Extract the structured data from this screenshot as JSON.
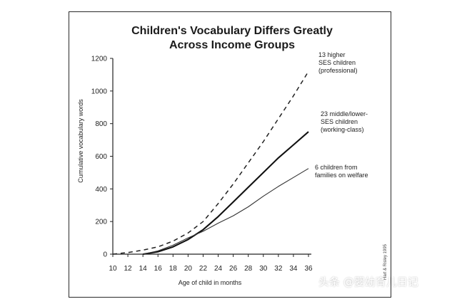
{
  "chart_data": {
    "type": "line",
    "title_lines": [
      "Children's Vocabulary Differs Greatly",
      "Across Income Groups"
    ],
    "xlabel": "Age of child in months",
    "ylabel": "Cumulative vocabulary words",
    "x_ticks": [
      10,
      12,
      14,
      16,
      18,
      20,
      22,
      24,
      26,
      28,
      30,
      32,
      34,
      36
    ],
    "y_ticks": [
      0,
      200,
      400,
      600,
      800,
      1000,
      1200
    ],
    "xlim": [
      10,
      36
    ],
    "ylim": [
      0,
      1200
    ],
    "grid": false,
    "series": [
      {
        "name": "13 higher SES children (professional)",
        "label_lines": [
          "13 higher",
          "SES children",
          "(professional)"
        ],
        "style": "dashed",
        "x": [
          10,
          12,
          14,
          16,
          18,
          20,
          22,
          24,
          26,
          28,
          30,
          32,
          34,
          36
        ],
        "y": [
          0,
          10,
          25,
          45,
          80,
          130,
          200,
          310,
          430,
          560,
          690,
          830,
          970,
          1120
        ]
      },
      {
        "name": "23 middle/lower-SES children (working-class)",
        "label_lines": [
          "23 middle/lower-",
          "SES children",
          "(working-class)"
        ],
        "style": "solid-thick",
        "x": [
          14,
          16,
          18,
          20,
          22,
          24,
          26,
          28,
          30,
          32,
          34,
          36
        ],
        "y": [
          0,
          15,
          45,
          90,
          150,
          230,
          320,
          410,
          500,
          590,
          670,
          750
        ]
      },
      {
        "name": "6 children from families on welfare",
        "label_lines": [
          "6 children from",
          "families on welfare"
        ],
        "style": "solid-thin",
        "x": [
          14,
          16,
          18,
          20,
          22,
          24,
          26,
          28,
          30,
          32,
          34,
          36
        ],
        "y": [
          0,
          20,
          55,
          100,
          140,
          190,
          235,
          290,
          355,
          415,
          470,
          525
        ]
      }
    ],
    "side_note": "Hart & Risley 1995"
  },
  "watermark": "头条 @婴幼育儿日记"
}
